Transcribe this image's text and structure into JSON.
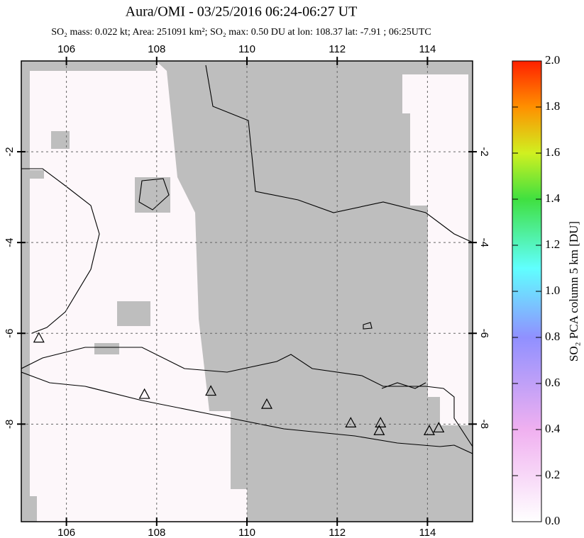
{
  "chart_data": {
    "type": "map",
    "title": "Aura/OMI - 03/25/2016 06:24-06:27 UT",
    "subtitle": "SO₂ mass: 0.022 kt; Area: 251091 km²; SO₂ max: 0.50 DU at lon: 108.37 lat: -7.91 ; 06:25UTC",
    "xlim": [
      105.0,
      115.0
    ],
    "ylim": [
      -10.15,
      0.0
    ],
    "xticks": [
      106,
      108,
      110,
      112,
      114
    ],
    "yticks": [
      -2,
      -4,
      -6,
      -8
    ],
    "grid": true,
    "x": [
      105.39,
      107.73,
      109.2,
      110.44,
      112.3,
      112.96,
      112.93,
      114.04,
      114.25
    ],
    "y": [
      -6.1,
      -7.34,
      -7.27,
      -7.56,
      -7.97,
      -7.97,
      -8.14,
      -8.14,
      -8.08
    ],
    "colorbar": {
      "label": "SO₂ PCA column 5 km [DU]",
      "lim": [
        0.0,
        2.0
      ],
      "ticks": [
        {
          "value": 0.0,
          "label": "0.0"
        },
        0.2,
        0.4,
        0.6,
        0.8,
        {
          "value": 1.0,
          "label": "1.0"
        },
        1.2,
        1.4,
        1.6,
        1.8,
        {
          "value": 2.0,
          "label": "2.0"
        }
      ]
    }
  }
}
